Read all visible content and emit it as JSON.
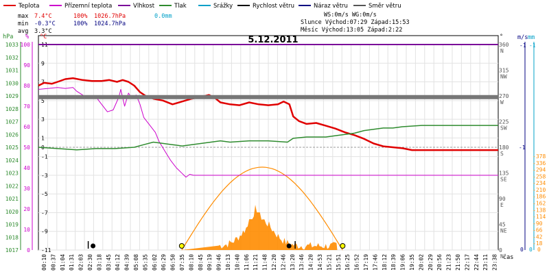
{
  "legend": [
    {
      "label": "Teplota",
      "color": "#e00000"
    },
    {
      "label": "Přízemní teplota",
      "color": "#cc00cc"
    },
    {
      "label": "Vlhkost",
      "color": "#7a0099"
    },
    {
      "label": "Tlak",
      "color": "#2e8b2e"
    },
    {
      "label": "Srážky",
      "color": "#00a0c8"
    },
    {
      "label": "Rychlost větru",
      "color": "#000000"
    },
    {
      "label": "Náraz větru",
      "color": "#000080"
    },
    {
      "label": "Směr větru",
      "color": "#555555"
    }
  ],
  "stats": {
    "rows": [
      {
        "label": "max",
        "temp": "7.4°C",
        "hum": "100%",
        "press": "1026.7hPa",
        "rain": "0.0mm",
        "color": "#e00000",
        "rain_color": "#00a0c8"
      },
      {
        "label": "min",
        "temp": "-0.3°C",
        "hum": "100%",
        "press": "1024.7hPa",
        "rain": "",
        "color": "#000080"
      },
      {
        "label": "avg",
        "temp": "3.3°C",
        "hum": "",
        "press": "",
        "rain": "",
        "color": "#000000"
      }
    ]
  },
  "astro": {
    "wind_line": "WS:0m/s     WG:0m/s",
    "sun_line": "Slunce Východ:07:29  Západ:15:53",
    "moon_line": "Měsíc  Východ:13:05  Západ:2:22"
  },
  "chart_data": {
    "type": "line",
    "title": "5.12.2011",
    "xlabel": "čas",
    "x_ticks": [
      "00:10",
      "00:37",
      "01:04",
      "01:31",
      "02:03",
      "02:30",
      "03:18",
      "03:45",
      "04:12",
      "04:39",
      "05:08",
      "05:35",
      "06:02",
      "06:29",
      "06:50",
      "07:35",
      "08:10",
      "08:45",
      "09:19",
      "09:46",
      "10:13",
      "10:40",
      "11:06",
      "11:21",
      "11:48",
      "12:20",
      "12:46",
      "13:20",
      "13:46",
      "14:20",
      "14:53",
      "15:21",
      "15:51",
      "16:25",
      "16:52",
      "17:19",
      "17:46",
      "18:12",
      "18:39",
      "19:06",
      "19:35",
      "20:02",
      "20:29",
      "20:56",
      "21:23",
      "21:50",
      "22:17",
      "22:44",
      "23:11",
      "23:38"
    ],
    "axes": {
      "pressure": {
        "label": "hPa",
        "min": 1017,
        "max": 1033,
        "ticks": [
          1017,
          1018,
          1019,
          1020,
          1021,
          1022,
          1023,
          1024,
          1025,
          1026,
          1027,
          1028,
          1029,
          1030,
          1031,
          1032,
          1033
        ],
        "color": "#2e8b2e"
      },
      "humidity": {
        "label": "%",
        "min": 0,
        "max": 100,
        "ticks": [
          0,
          10,
          20,
          30,
          40,
          50,
          60,
          70,
          80,
          90,
          100
        ],
        "color": "#cc00cc"
      },
      "temperature": {
        "label": "°C",
        "ticks": [
          -11,
          -9,
          -7,
          -5,
          -3,
          -1,
          0,
          1,
          3,
          5,
          7,
          9,
          11
        ],
        "color": "#e00000"
      },
      "direction": {
        "label": "°",
        "ticks": [
          0,
          45,
          90,
          135,
          180,
          225,
          270,
          315,
          360
        ],
        "names": [
          "N",
          "NE",
          "E",
          "SE",
          "S",
          "SW",
          "W",
          "NW",
          "N"
        ],
        "color": "#555555"
      },
      "wind": {
        "label": "m/s",
        "ticks": [
          0,
          1
        ],
        "color": "#000080"
      },
      "rain": {
        "label": "mm",
        "ticks": [
          0,
          1
        ],
        "color": "#00a0c8"
      },
      "solar": {
        "ticks": [
          0,
          18,
          42,
          66,
          90,
          114,
          138,
          162,
          186,
          210,
          234,
          258,
          294,
          336,
          378
        ],
        "color": "#ff8c00"
      }
    },
    "series": [
      {
        "name": "Teplota",
        "color": "#e00000",
        "points": [
          [
            0,
            6.6
          ],
          [
            0.3,
            6.9
          ],
          [
            0.7,
            6.8
          ],
          [
            1.0,
            7.0
          ],
          [
            1.4,
            7.3
          ],
          [
            1.8,
            7.4
          ],
          [
            2.3,
            7.2
          ],
          [
            2.8,
            7.1
          ],
          [
            3.3,
            7.1
          ],
          [
            3.7,
            7.2
          ],
          [
            4.1,
            7.0
          ],
          [
            4.4,
            7.2
          ],
          [
            4.7,
            7.0
          ],
          [
            5.0,
            6.6
          ],
          [
            5.3,
            5.9
          ],
          [
            5.6,
            5.5
          ],
          [
            6.0,
            5.2
          ],
          [
            6.5,
            5.0
          ],
          [
            7.0,
            4.6
          ],
          [
            7.5,
            4.9
          ],
          [
            8.0,
            5.2
          ],
          [
            8.5,
            5.4
          ],
          [
            8.9,
            5.6
          ],
          [
            9.2,
            5.3
          ],
          [
            9.5,
            4.8
          ],
          [
            10.0,
            4.6
          ],
          [
            10.5,
            4.5
          ],
          [
            11.0,
            4.8
          ],
          [
            11.5,
            4.6
          ],
          [
            12.0,
            4.5
          ],
          [
            12.5,
            4.6
          ],
          [
            12.8,
            4.9
          ],
          [
            13.1,
            4.6
          ],
          [
            13.3,
            3.3
          ],
          [
            13.6,
            2.8
          ],
          [
            14.0,
            2.5
          ],
          [
            14.5,
            2.6
          ],
          [
            15.0,
            2.3
          ],
          [
            15.5,
            2.0
          ],
          [
            16.0,
            1.6
          ],
          [
            16.5,
            1.3
          ],
          [
            17.0,
            0.9
          ],
          [
            17.5,
            0.4
          ],
          [
            18.0,
            0.1
          ],
          [
            18.5,
            0.0
          ],
          [
            19.0,
            -0.1
          ],
          [
            19.5,
            -0.3
          ],
          [
            20.0,
            -0.3
          ],
          [
            21.0,
            -0.3
          ],
          [
            22.0,
            -0.3
          ],
          [
            23.0,
            -0.3
          ],
          [
            24.0,
            -0.3
          ]
        ]
      },
      {
        "name": "Přízemní teplota",
        "color": "#cc00cc",
        "points": [
          [
            0,
            6.2
          ],
          [
            0.5,
            6.3
          ],
          [
            1.0,
            6.4
          ],
          [
            1.4,
            6.3
          ],
          [
            1.8,
            6.4
          ],
          [
            2.0,
            6.0
          ],
          [
            2.3,
            5.6
          ],
          [
            2.6,
            5.2
          ],
          [
            3.0,
            5.4
          ],
          [
            3.3,
            4.6
          ],
          [
            3.6,
            3.8
          ],
          [
            3.9,
            4.0
          ],
          [
            4.2,
            5.4
          ],
          [
            4.3,
            6.2
          ],
          [
            4.5,
            4.4
          ],
          [
            4.7,
            5.8
          ],
          [
            4.9,
            5.2
          ],
          [
            5.1,
            5.6
          ],
          [
            5.3,
            4.6
          ],
          [
            5.5,
            3.2
          ],
          [
            5.8,
            2.4
          ],
          [
            6.1,
            1.6
          ],
          [
            6.3,
            0.6
          ],
          [
            6.6,
            -0.4
          ],
          [
            6.9,
            -1.4
          ],
          [
            7.2,
            -2.2
          ],
          [
            7.5,
            -2.8
          ],
          [
            7.7,
            -3.2
          ],
          [
            7.9,
            -2.9
          ],
          [
            8.1,
            -3.0
          ],
          [
            9.0,
            -3.0
          ],
          [
            12.0,
            -3.0
          ],
          [
            15.0,
            -3.0
          ],
          [
            18.0,
            -3.0
          ],
          [
            21.0,
            -3.0
          ],
          [
            24.0,
            -3.0
          ]
        ]
      },
      {
        "name": "Vlhkost",
        "color": "#7a0099",
        "points": [
          [
            0,
            100
          ],
          [
            24,
            100
          ]
        ]
      },
      {
        "name": "Tlak",
        "color": "#2e8b2e",
        "points": [
          [
            0,
            1025.0
          ],
          [
            1.0,
            1024.9
          ],
          [
            2.0,
            1024.8
          ],
          [
            3.0,
            1024.9
          ],
          [
            4.0,
            1024.9
          ],
          [
            5.0,
            1025.0
          ],
          [
            5.5,
            1025.2
          ],
          [
            6.0,
            1025.4
          ],
          [
            6.5,
            1025.3
          ],
          [
            7.0,
            1025.2
          ],
          [
            7.5,
            1025.1
          ],
          [
            8.0,
            1025.2
          ],
          [
            8.5,
            1025.3
          ],
          [
            9.0,
            1025.4
          ],
          [
            9.5,
            1025.5
          ],
          [
            10.0,
            1025.4
          ],
          [
            11.0,
            1025.5
          ],
          [
            12.0,
            1025.5
          ],
          [
            13.0,
            1025.4
          ],
          [
            13.3,
            1025.7
          ],
          [
            14.0,
            1025.8
          ],
          [
            15.0,
            1025.8
          ],
          [
            15.5,
            1025.9
          ],
          [
            16.0,
            1026.0
          ],
          [
            16.5,
            1026.1
          ],
          [
            17.0,
            1026.3
          ],
          [
            17.5,
            1026.4
          ],
          [
            18.0,
            1026.5
          ],
          [
            18.5,
            1026.5
          ],
          [
            19.0,
            1026.6
          ],
          [
            20.0,
            1026.7
          ],
          [
            21.0,
            1026.7
          ],
          [
            22.0,
            1026.7
          ],
          [
            23.0,
            1026.7
          ],
          [
            24.0,
            1026.7
          ]
        ]
      },
      {
        "name": "Směr větru",
        "color": "#555555",
        "points": [
          [
            0,
            268
          ],
          [
            24,
            268
          ]
        ]
      }
    ],
    "solar": {
      "name": "Sluneční záření",
      "color": "#ff8c00",
      "peak": 336,
      "sunrise": 7.48,
      "sunset": 15.88
    },
    "grid": true
  }
}
